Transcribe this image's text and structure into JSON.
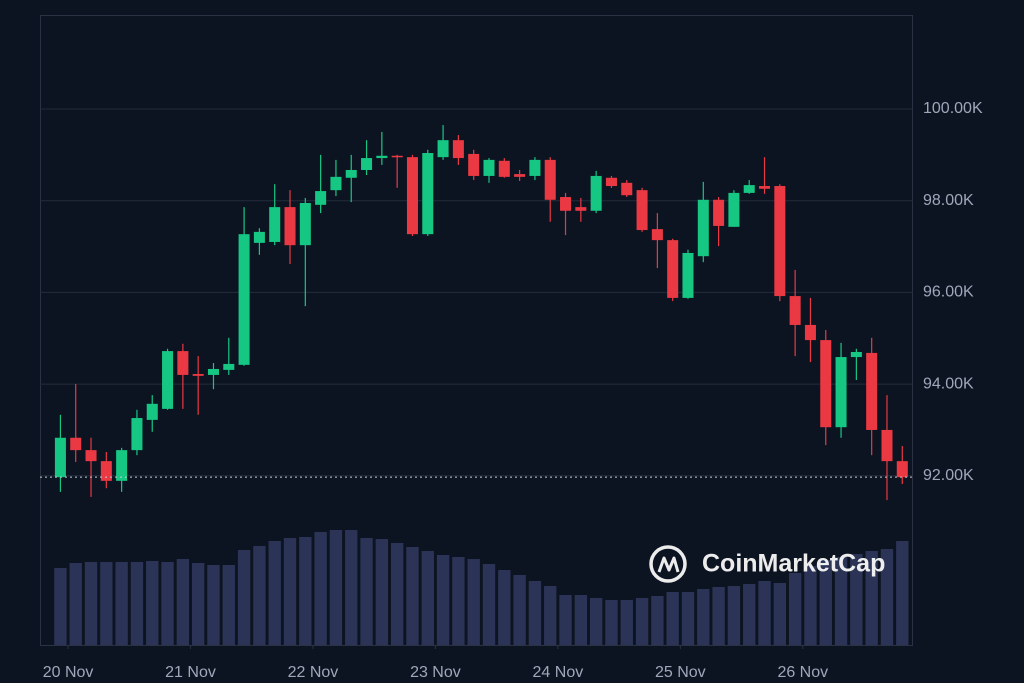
{
  "chart_data": {
    "type": "candlestick",
    "watermark": "CoinMarketCap",
    "x": [
      -1.5,
      1.5,
      4.5,
      7.5,
      10.5,
      13.5,
      16.5,
      19.5,
      22.5,
      25.5,
      28.5,
      31.5,
      34.5,
      37.5,
      40.5,
      43.5,
      46.5,
      49.5,
      52.5,
      55.5,
      58.5,
      61.5,
      64.5,
      67.5,
      70.5,
      73.5,
      76.5,
      79.5,
      82.5,
      85.5,
      88.5,
      91.5,
      94.5,
      97.5,
      100.5,
      103.5,
      106.5,
      109.5,
      112.5,
      115.5,
      118.5,
      121.5,
      124.5,
      127.5,
      130.5,
      133.5,
      136.5,
      139.5,
      142.5,
      145.5,
      148.5,
      151.5,
      154.5,
      157.5,
      160.5,
      163.5
    ],
    "xlim": [
      -5.5,
      165.6
    ],
    "xticks": [
      {
        "value": 0,
        "label": "20 Nov"
      },
      {
        "value": 24,
        "label": "21 Nov"
      },
      {
        "value": 48,
        "label": "22 Nov"
      },
      {
        "value": 72,
        "label": "23 Nov"
      },
      {
        "value": 96,
        "label": "24 Nov"
      },
      {
        "value": 120,
        "label": "25 Nov"
      },
      {
        "value": 144,
        "label": "26 Nov"
      }
    ],
    "ylim": [
      88310,
      102050
    ],
    "yticks": [
      {
        "value": 92000,
        "label": "92.00K"
      },
      {
        "value": 94000,
        "label": "94.00K"
      },
      {
        "value": 96000,
        "label": "96.00K"
      },
      {
        "value": 98000,
        "label": "98.00K"
      },
      {
        "value": 100000,
        "label": "100.00K"
      }
    ],
    "grid": true,
    "up_color": "#16c784",
    "down_color": "#ea3943",
    "volume_color": "#2b3456",
    "series": [
      {
        "open": [
          91970,
          92830,
          92560,
          92320,
          91890,
          92560,
          93220,
          93460,
          94720,
          94220,
          94200,
          94310,
          94420,
          97080,
          97100,
          97860,
          97030,
          97910,
          98230,
          98500,
          98670,
          98930,
          98980,
          98950,
          97270,
          98950,
          99320,
          99020,
          98540,
          98870,
          98580,
          98540,
          98890,
          98080,
          97860,
          97780,
          98500,
          98390,
          98230,
          97380,
          97140,
          95880,
          96790,
          98020,
          97430,
          98170,
          98320,
          98320,
          95920,
          95290,
          94960,
          93060,
          94590,
          94680,
          93000,
          92320
        ],
        "high": [
          93330,
          94000,
          92830,
          92520,
          92610,
          93440,
          93760,
          94770,
          94880,
          94610,
          94460,
          95010,
          97860,
          97400,
          98360,
          98230,
          98060,
          99000,
          98890,
          99000,
          99320,
          99500,
          99000,
          99000,
          99110,
          99650,
          99430,
          99110,
          98930,
          98930,
          98670,
          98950,
          98950,
          98170,
          98060,
          98650,
          98540,
          98450,
          98280,
          97730,
          97170,
          96930,
          98410,
          98080,
          98230,
          98450,
          98950,
          98360,
          96490,
          95880,
          95180,
          94900,
          94770,
          95010,
          93760,
          92650
        ],
        "low": [
          91650,
          92300,
          91540,
          91730,
          91650,
          92450,
          92960,
          93440,
          93460,
          93330,
          93890,
          94200,
          94400,
          96820,
          97030,
          96620,
          95700,
          97730,
          98100,
          97970,
          98560,
          98780,
          98280,
          97230,
          97230,
          98890,
          98780,
          98450,
          98390,
          98500,
          98430,
          98450,
          97540,
          97250,
          97540,
          97730,
          98280,
          98080,
          97320,
          96530,
          95810,
          95860,
          96660,
          97010,
          97430,
          98150,
          98150,
          95810,
          94610,
          94480,
          92670,
          92830,
          94090,
          92450,
          91470,
          91820
        ],
        "close": [
          92830,
          92560,
          92320,
          91890,
          92560,
          93260,
          93570,
          94720,
          94200,
          94180,
          94330,
          94440,
          97270,
          97320,
          97860,
          97030,
          97950,
          98210,
          98520,
          98670,
          98930,
          98980,
          98950,
          97270,
          99040,
          99320,
          98930,
          98540,
          98890,
          98520,
          98520,
          98890,
          98020,
          97780,
          97780,
          98540,
          98320,
          98120,
          97360,
          97140,
          95880,
          96860,
          98020,
          97450,
          98170,
          98340,
          98260,
          95920,
          95290,
          94960,
          93060,
          94590,
          94700,
          93000,
          92320,
          91970
        ],
        "volume": [
          77,
          82,
          83,
          83,
          83,
          83,
          84,
          83,
          86,
          82,
          80,
          80,
          95,
          99,
          104,
          107,
          108,
          113,
          115,
          115,
          107,
          106,
          102,
          98,
          94,
          90,
          88,
          86,
          81,
          75,
          70,
          64,
          59,
          50,
          50,
          47,
          45,
          45,
          47,
          49,
          53,
          53,
          56,
          58,
          59,
          61,
          64,
          62,
          72,
          79,
          85,
          88,
          91,
          94,
          96,
          104
        ]
      }
    ]
  }
}
